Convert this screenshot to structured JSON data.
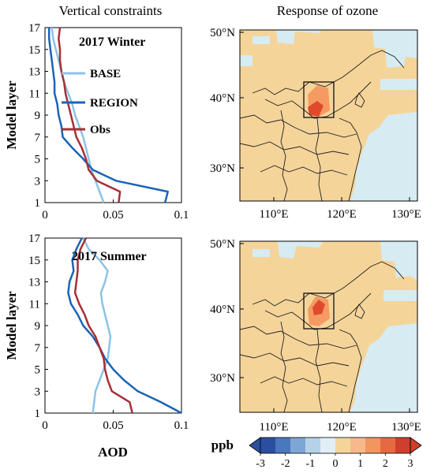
{
  "titles": {
    "left": "Vertical constraints",
    "right": "Response of ozone"
  },
  "panels": {
    "winter_label": "2017 Winter",
    "summer_label": "2017 Summer"
  },
  "axes": {
    "ylabel": "Model layer",
    "xlabel": "AOD",
    "y_ticks": [
      "1",
      "3",
      "5",
      "7",
      "9",
      "11",
      "13",
      "15",
      "17"
    ],
    "winter_x_ticks": [
      "0",
      "0.05",
      "0.1"
    ],
    "summer_x_ticks": [
      "0",
      "0.05",
      "0.1"
    ]
  },
  "legend": [
    "BASE",
    "REGION",
    "Obs"
  ],
  "colors": {
    "BASE": "#8cc3e6",
    "REGION": "#1a64b6",
    "Obs": "#a62f35",
    "land": "#f5d49a",
    "sea": "#d6ecf2",
    "hot": "#e04a2c",
    "warm": "#f49a62"
  },
  "map": {
    "lon_ticks": [
      "110°E",
      "120°E",
      "130°E"
    ],
    "lat_ticks": [
      "30°N",
      "40°N",
      "50°N"
    ]
  },
  "colorbar": {
    "unit": "ppb",
    "ticks": [
      "-3",
      "-2",
      "-1",
      "0",
      "1",
      "2",
      "3"
    ],
    "colors": [
      "#2b4fa0",
      "#4a78bd",
      "#7ea6d4",
      "#b5d2e8",
      "#e2eef5",
      "#f5d49a",
      "#f6b98b",
      "#f2955f",
      "#e56a42",
      "#cf3f2c"
    ]
  },
  "chart_data": [
    {
      "type": "line",
      "title": "2017 Winter",
      "xlabel": "",
      "ylabel": "Model layer",
      "xlim": [
        0,
        0.1
      ],
      "ylim": [
        1,
        17
      ],
      "y": [
        1,
        2,
        3,
        4,
        5,
        6,
        7,
        8,
        9,
        10,
        11,
        12,
        13,
        14,
        15,
        16,
        17
      ],
      "series": [
        {
          "name": "BASE",
          "values": [
            0.043,
            0.04,
            0.037,
            0.034,
            0.032,
            0.03,
            0.028,
            0.025,
            0.022,
            0.02,
            0.017,
            0.014,
            0.012,
            0.01,
            0.008,
            0.006,
            0.005
          ]
        },
        {
          "name": "REGION",
          "values": [
            0.088,
            0.09,
            0.052,
            0.035,
            0.028,
            0.02,
            0.013,
            0.012,
            0.01,
            0.009,
            0.007,
            0.007,
            0.006,
            0.005,
            0.004,
            0.003,
            0.003
          ]
        },
        {
          "name": "Obs",
          "values": [
            0.054,
            0.055,
            0.038,
            0.032,
            0.03,
            0.027,
            0.023,
            0.021,
            0.019,
            0.017,
            0.015,
            0.014,
            0.012,
            0.011,
            0.011,
            0.01,
            0.011
          ]
        }
      ]
    },
    {
      "type": "line",
      "title": "2017 Summer",
      "xlabel": "AOD",
      "ylabel": "Model layer",
      "xlim": [
        0,
        0.1
      ],
      "ylim": [
        1,
        17
      ],
      "y": [
        1,
        2,
        3,
        4,
        5,
        6,
        7,
        8,
        9,
        10,
        11,
        12,
        13,
        14,
        15,
        16,
        17
      ],
      "series": [
        {
          "name": "BASE",
          "values": [
            0.035,
            0.036,
            0.037,
            0.04,
            0.043,
            0.046,
            0.047,
            0.048,
            0.046,
            0.044,
            0.042,
            0.041,
            0.044,
            0.046,
            0.04,
            0.032,
            0.028
          ]
        },
        {
          "name": "REGION",
          "values": [
            0.1,
            0.085,
            0.068,
            0.058,
            0.05,
            0.044,
            0.04,
            0.035,
            0.028,
            0.024,
            0.019,
            0.017,
            0.018,
            0.021,
            0.02,
            0.023,
            0.027
          ]
        },
        {
          "name": "Obs",
          "values": [
            0.064,
            0.062,
            0.049,
            0.046,
            0.044,
            0.043,
            0.04,
            0.037,
            0.032,
            0.029,
            0.025,
            0.022,
            0.023,
            0.024,
            0.024,
            0.026,
            0.03
          ]
        }
      ]
    }
  ]
}
